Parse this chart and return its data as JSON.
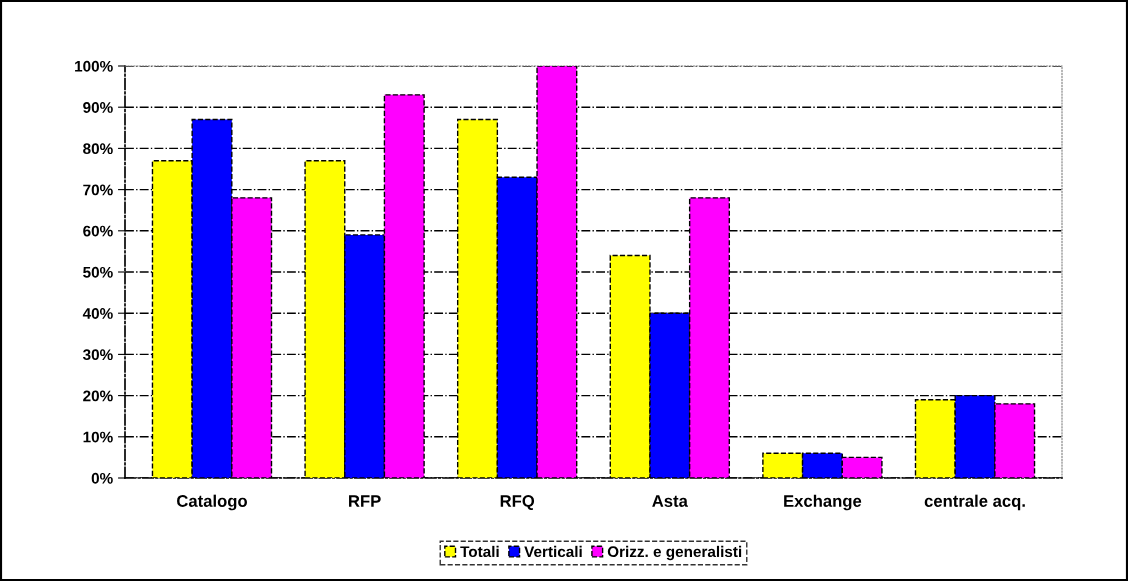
{
  "chart_data": {
    "type": "bar",
    "categories": [
      "Catalogo",
      "RFP",
      "RFQ",
      "Asta",
      "Exchange",
      "centrale acq."
    ],
    "series": [
      {
        "name": "Totali",
        "color": "#ffff00",
        "values": [
          77,
          77,
          87,
          54,
          6,
          19
        ]
      },
      {
        "name": "Verticali",
        "color": "#0000ff",
        "values": [
          87,
          59,
          73,
          40,
          6,
          20
        ]
      },
      {
        "name": "Orizz. e generalisti",
        "color": "#ff00ff",
        "values": [
          68,
          93,
          100,
          68,
          5,
          18
        ]
      }
    ],
    "ylim": [
      0,
      100
    ],
    "yticks": [
      {
        "value": 0,
        "label": "0%"
      },
      {
        "value": 10,
        "label": "10%"
      },
      {
        "value": 20,
        "label": "20%"
      },
      {
        "value": 30,
        "label": "30%"
      },
      {
        "value": 40,
        "label": "40%"
      },
      {
        "value": 50,
        "label": "50%"
      },
      {
        "value": 60,
        "label": "60%"
      },
      {
        "value": 70,
        "label": "70%"
      },
      {
        "value": 80,
        "label": "80%"
      },
      {
        "value": 90,
        "label": "90%"
      },
      {
        "value": 100,
        "label": "100%"
      }
    ],
    "grid": "y",
    "legend": "bottom"
  }
}
